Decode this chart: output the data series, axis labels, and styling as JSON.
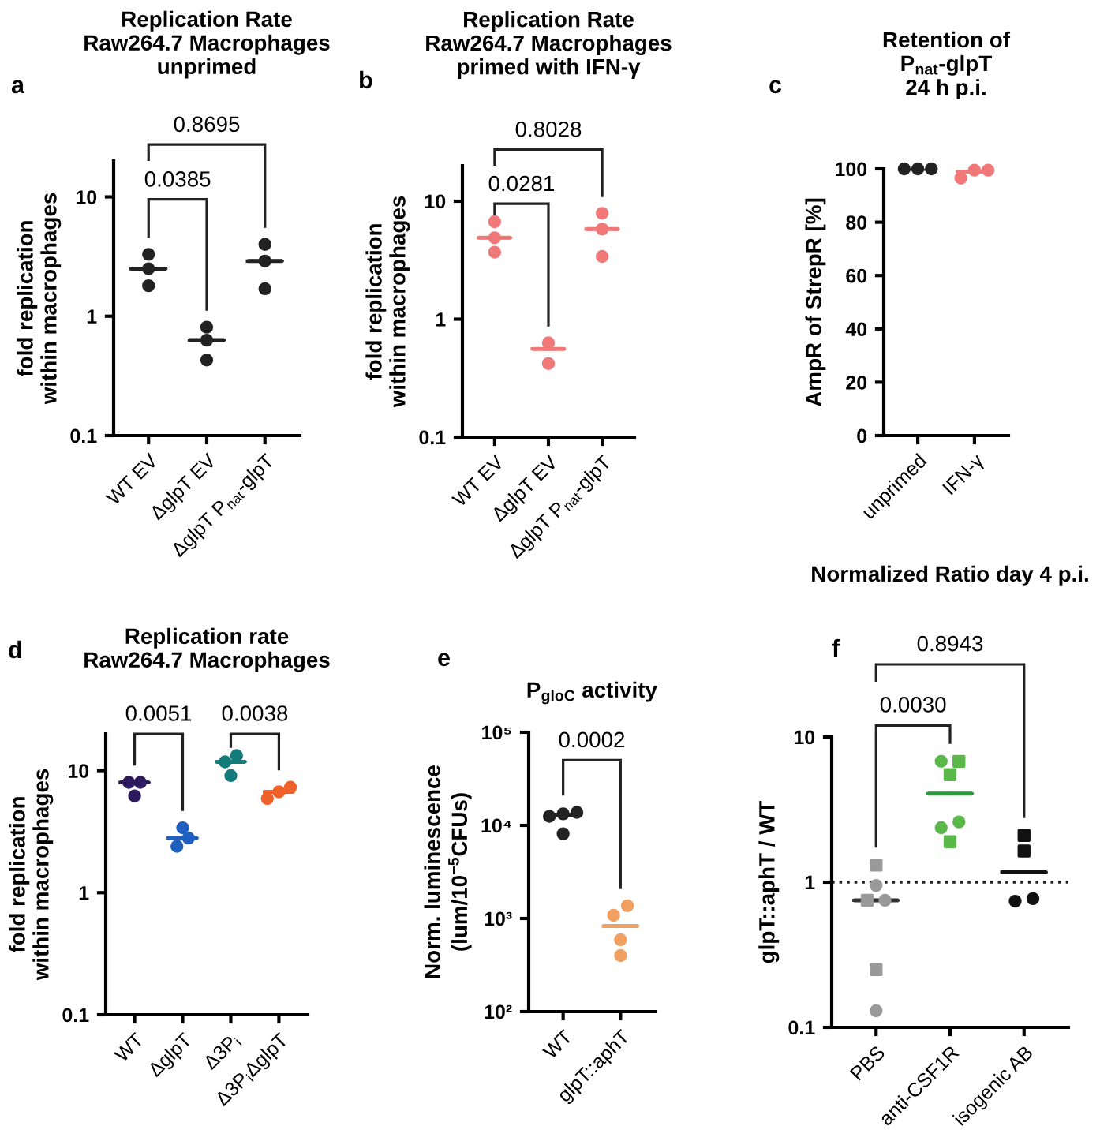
{
  "chart_data": [
    {
      "type": "scatter",
      "title": "Replication Rate\nRaw264.7 Macrophages\nunprimed",
      "ylabel": "fold replication\nwithin macrophages",
      "annotations": [
        "a",
        "0.0385",
        "0.8695"
      ],
      "categories": [
        "WT EV",
        "ΔglpT EV",
        "ΔglpT P$_{nat}$-glpT"
      ],
      "log": true,
      "ylim": [
        0.1,
        20
      ],
      "yticks": [
        0.1,
        1,
        10
      ],
      "series": [
        {
          "marker": "circle",
          "color": "#222222",
          "x": [
            "WT EV",
            "WT EV",
            "WT EV"
          ],
          "values": [
            3.3,
            2.5,
            1.8
          ]
        },
        {
          "marker": "circle",
          "color": "#222222",
          "x": [
            "ΔglpT EV",
            "ΔglpT EV",
            "ΔglpT EV"
          ],
          "values": [
            0.81,
            0.63,
            0.43
          ]
        },
        {
          "marker": "circle",
          "color": "#222222",
          "x": [
            "ΔglpT P$_{nat}$-glpT",
            "ΔglpT P$_{nat}$-glpT",
            "ΔglpT P$_{nat}$-glpT"
          ],
          "values": [
            4.0,
            2.9,
            1.7
          ]
        },
        {
          "type": "box",
          "colors": [
            "#222222",
            "#222222",
            "#222222"
          ],
          "boxes": [
            {
              "low": 2.5,
              "q1": 2.5,
              "median": 2.5,
              "q3": 2.5,
              "high": 2.5
            },
            {
              "low": 0.63,
              "q1": 0.63,
              "median": 0.63,
              "q3": 0.63,
              "high": 0.63
            },
            {
              "low": 2.9,
              "q1": 2.9,
              "median": 2.9,
              "q3": 2.9,
              "high": 2.9
            }
          ]
        }
      ]
    },
    {
      "type": "scatter",
      "title": "Replication Rate\nRaw264.7 Macrophages\nprimed with IFN-γ",
      "ylabel": "fold replication\nwithin macrophages",
      "annotations": [
        "b",
        "0.0281",
        "0.8028"
      ],
      "categories": [
        "WT EV",
        "ΔglpT EV",
        "ΔglpT P$_{nat}$-glpT"
      ],
      "log": true,
      "ylim": [
        0.1,
        20
      ],
      "yticks": [
        0.1,
        1,
        10
      ],
      "series": [
        {
          "marker": "circle",
          "color": "#f07878",
          "x": [
            "WT EV",
            "WT EV",
            "WT EV"
          ],
          "values": [
            6.7,
            4.9,
            3.7
          ]
        },
        {
          "marker": "circle",
          "color": "#f07878",
          "x": [
            "ΔglpT EV",
            "ΔglpT EV"
          ],
          "values": [
            0.63,
            0.42
          ]
        },
        {
          "marker": "circle",
          "color": "#f07878",
          "x": [
            "ΔglpT P$_{nat}$-glpT",
            "ΔglpT P$_{nat}$-glpT",
            "ΔglpT P$_{nat}$-glpT"
          ],
          "values": [
            7.9,
            5.8,
            3.4
          ]
        },
        {
          "type": "box",
          "colors": [
            "#f07878",
            "#f07878",
            "#f07878"
          ],
          "boxes": [
            {
              "low": 4.9,
              "q1": 4.9,
              "median": 4.9,
              "q3": 4.9,
              "high": 4.9
            },
            {
              "low": 0.56,
              "q1": 0.56,
              "median": 0.56,
              "q3": 0.56,
              "high": 0.56
            },
            {
              "low": 5.8,
              "q1": 5.8,
              "median": 5.8,
              "q3": 5.8,
              "high": 5.8
            }
          ]
        }
      ]
    },
    {
      "type": "scatter",
      "title": "Retention of\nP$_{nat}$-glpT\n24 h p.i.",
      "ylabel": "AmpR of StrepR [%]",
      "annotations": [
        "c"
      ],
      "categories": [
        "unprimed",
        "IFN-γ"
      ],
      "ylim": [
        0,
        100
      ],
      "yticks": [
        0,
        20,
        40,
        60,
        80,
        100
      ],
      "series": [
        {
          "marker": "circle",
          "color": "#222222",
          "x": [
            "unprimed",
            "unprimed",
            "unprimed"
          ],
          "values": [
            100,
            100,
            100
          ]
        },
        {
          "marker": "circle",
          "color": "#f07878",
          "x": [
            "IFN-γ",
            "IFN-γ",
            "IFN-γ"
          ],
          "values": [
            99.5,
            99.5,
            96.5
          ]
        },
        {
          "type": "box",
          "colors": [
            "#222222",
            "#f07878"
          ],
          "boxes": [
            {
              "low": 100,
              "q1": 100,
              "median": 100,
              "q3": 100,
              "high": 100
            },
            {
              "low": 99,
              "q1": 99,
              "median": 99,
              "q3": 99,
              "high": 99
            }
          ]
        }
      ]
    },
    {
      "type": "scatter",
      "title": "Replication rate\nRaw264.7 Macrophages",
      "ylabel": "fold replication\nwithin macrophages",
      "annotations": [
        "d",
        "0.0051",
        "0.0038"
      ],
      "categories": [
        "WT",
        "ΔglpT",
        "Δ3P$_{i}$",
        "Δ3P$_{i}$ΔglpT"
      ],
      "log": true,
      "ylim": [
        0.1,
        20
      ],
      "yticks": [
        0.1,
        1,
        10
      ],
      "series": [
        {
          "marker": "circle",
          "color": "#2e1a5e",
          "x": [
            "WT",
            "WT",
            "WT"
          ],
          "values": [
            8.0,
            8.0,
            6.2
          ]
        },
        {
          "marker": "circle",
          "color": "#1f5fbf",
          "x": [
            "ΔglpT",
            "ΔglpT",
            "ΔglpT"
          ],
          "values": [
            3.4,
            2.8,
            2.4
          ]
        },
        {
          "marker": "circle",
          "color": "#157a7a",
          "x": [
            "Δ3P$_{i}$",
            "Δ3P$_{i}$",
            "Δ3P$_{i}$"
          ],
          "values": [
            13.3,
            11.8,
            9.1
          ]
        },
        {
          "marker": "circle",
          "color": "#f0602a",
          "x": [
            "Δ3P$_{i}$ΔglpT",
            "Δ3P$_{i}$ΔglpT",
            "Δ3P$_{i}$ΔglpT"
          ],
          "values": [
            7.3,
            6.7,
            5.9
          ]
        },
        {
          "type": "box",
          "colors": [
            "#2e1a5e",
            "#1f5fbf",
            "#157a7a",
            "#f0602a"
          ],
          "boxes": [
            {
              "low": 8.0,
              "q1": 8.0,
              "median": 8.0,
              "q3": 8.0,
              "high": 8.0
            },
            {
              "low": 2.8,
              "q1": 2.8,
              "median": 2.8,
              "q3": 2.8,
              "high": 2.8
            },
            {
              "low": 11.8,
              "q1": 11.8,
              "median": 11.8,
              "q3": 11.8,
              "high": 11.8
            },
            {
              "low": 6.7,
              "q1": 6.7,
              "median": 6.7,
              "q3": 6.7,
              "high": 6.7
            }
          ]
        }
      ]
    },
    {
      "type": "scatter",
      "title": "P$_{gloC}$ activity",
      "ylabel": "Norm. luminescence\n(lum/10$^{−5}$CFUs)",
      "annotations": [
        "e",
        "0.0002"
      ],
      "categories": [
        "WT",
        "glpT::aphT"
      ],
      "log": true,
      "ylim": [
        100,
        100000
      ],
      "yticks": [
        {
          "value": 100,
          "label": "10²"
        },
        {
          "value": 1000,
          "label": "10³"
        },
        {
          "value": 10000,
          "label": "10⁴"
        },
        {
          "value": 100000,
          "label": "10⁵"
        }
      ],
      "series": [
        {
          "marker": "circle",
          "color": "#222222",
          "x": [
            "WT",
            "WT",
            "WT",
            "WT"
          ],
          "values": [
            12500,
            13300,
            13800,
            8100
          ]
        },
        {
          "marker": "circle",
          "color": "#f0a060",
          "x": [
            "glpT::aphT",
            "glpT::aphT",
            "glpT::aphT",
            "glpT::aphT"
          ],
          "values": [
            1370,
            1080,
            590,
            400
          ]
        },
        {
          "type": "box",
          "colors": [
            "#222222",
            "#f0a060"
          ],
          "boxes": [
            {
              "low": 13000,
              "q1": 13000,
              "median": 13000,
              "q3": 13000,
              "high": 13000
            },
            {
              "low": 830,
              "q1": 830,
              "median": 830,
              "q3": 830,
              "high": 830
            }
          ]
        }
      ]
    },
    {
      "type": "scatter",
      "title": "Normalized Ratio day 4 p.i.",
      "ylabel": "glpT::aphT / WT",
      "annotations": [
        "f",
        "0.0030",
        "0.8943"
      ],
      "categories": [
        "PBS",
        "anti-CSF1R",
        "isogenic AB"
      ],
      "log": true,
      "ylim": [
        0.1,
        10
      ],
      "yticks": [
        0.1,
        1,
        10
      ],
      "ref_lines": [
        {
          "axis": "y",
          "value": 1,
          "line_style": "dotted",
          "color": "#222222"
        }
      ],
      "series": [
        {
          "marker": "square",
          "color": "#999999",
          "x": [
            "PBS",
            "PBS",
            "PBS"
          ],
          "values": [
            1.31,
            0.75,
            0.25
          ]
        },
        {
          "marker": "circle",
          "color": "#999999",
          "x": [
            "PBS",
            "PBS",
            "PBS"
          ],
          "values": [
            0.95,
            0.75,
            0.13
          ]
        },
        {
          "marker": "circle",
          "color": "#5ab84a",
          "x": [
            "anti-CSF1R",
            "anti-CSF1R",
            "anti-CSF1R"
          ],
          "values": [
            6.8,
            2.6,
            2.37
          ]
        },
        {
          "marker": "square",
          "color": "#5ab84a",
          "x": [
            "anti-CSF1R",
            "anti-CSF1R",
            "anti-CSF1R"
          ],
          "values": [
            6.8,
            5.5,
            1.9
          ]
        },
        {
          "marker": "square",
          "color": "#111111",
          "x": [
            "isogenic AB",
            "isogenic AB"
          ],
          "values": [
            2.1,
            1.64
          ]
        },
        {
          "marker": "circle",
          "color": "#111111",
          "x": [
            "isogenic AB",
            "isogenic AB"
          ],
          "values": [
            0.74,
            0.77
          ]
        },
        {
          "type": "box",
          "colors": [
            "#333333",
            "#2a9a3a",
            "#111111"
          ],
          "boxes": [
            {
              "low": 0.75,
              "q1": 0.75,
              "median": 0.75,
              "q3": 0.75,
              "high": 0.75
            },
            {
              "low": 4.07,
              "q1": 4.07,
              "median": 4.07,
              "q3": 4.07,
              "high": 4.07
            },
            {
              "low": 1.17,
              "q1": 1.17,
              "median": 1.17,
              "q3": 1.17,
              "high": 1.17
            }
          ]
        }
      ]
    }
  ]
}
